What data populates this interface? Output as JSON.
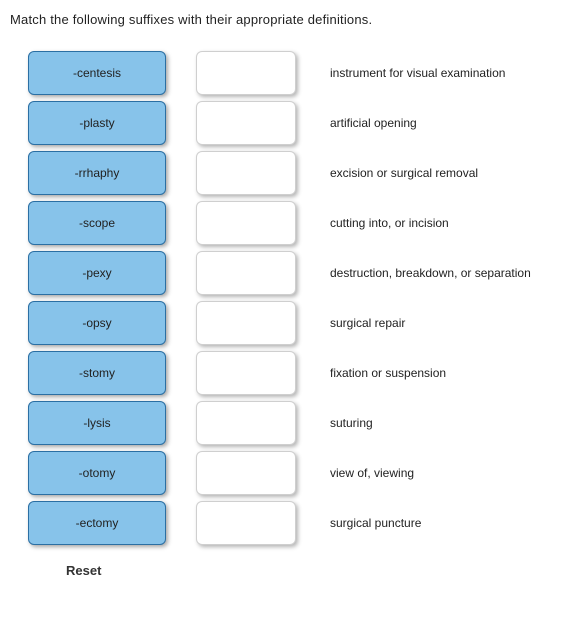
{
  "instruction": "Match the following suffixes with their appropriate definitions.",
  "suffixes": [
    "-centesis",
    "-plasty",
    "-rrhaphy",
    "-scope",
    "-pexy",
    "-opsy",
    "-stomy",
    "-lysis",
    "-otomy",
    "-ectomy"
  ],
  "definitions": [
    "instrument for visual examination",
    "artificial opening",
    "excision or surgical removal",
    "cutting into, or incision",
    "destruction, breakdown, or separation",
    "surgical repair",
    "fixation or suspension",
    "suturing",
    "view of, viewing",
    "surgical puncture"
  ],
  "reset_label": "Reset",
  "colors": {
    "suffix_bg": "#87c3ea",
    "suffix_border": "#2b6fa3",
    "drop_border": "#cfcfcf"
  }
}
